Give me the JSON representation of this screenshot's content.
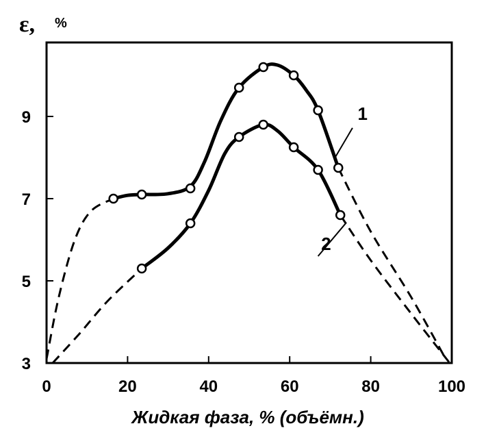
{
  "chart_data": {
    "type": "line",
    "ylabel_symbol": "ε,",
    "ylabel_unit": "%",
    "xlabel": "Жидкая фаза, % (объёмн.)",
    "xlim": [
      0,
      100
    ],
    "ylim": [
      3,
      10.8
    ],
    "x_ticks": [
      0,
      20,
      40,
      60,
      80,
      100
    ],
    "y_ticks": [
      3,
      5,
      7,
      9
    ],
    "x_tick_labels": [
      "0",
      "20",
      "40",
      "60",
      "80",
      "100"
    ],
    "y_tick_labels": [
      "3",
      "5",
      "7",
      "9"
    ],
    "series": [
      {
        "name": "1",
        "points": [
          {
            "x": 16.5,
            "y": 7.0
          },
          {
            "x": 23.5,
            "y": 7.1
          },
          {
            "x": 35.5,
            "y": 7.25
          },
          {
            "x": 47.5,
            "y": 9.7
          },
          {
            "x": 53.5,
            "y": 10.2
          },
          {
            "x": 61.0,
            "y": 10.0
          },
          {
            "x": 67.0,
            "y": 9.15
          },
          {
            "x": 72.0,
            "y": 7.75
          }
        ],
        "solid_curve": [
          [
            16.5,
            7.0
          ],
          [
            20,
            7.08
          ],
          [
            23.5,
            7.1
          ],
          [
            30,
            7.12
          ],
          [
            35.5,
            7.3
          ],
          [
            39,
            7.9
          ],
          [
            43,
            8.9
          ],
          [
            47.5,
            9.7
          ],
          [
            53.5,
            10.2
          ],
          [
            57,
            10.25
          ],
          [
            61,
            10.0
          ],
          [
            64,
            9.65
          ],
          [
            67,
            9.15
          ],
          [
            72,
            7.75
          ]
        ],
        "dashed_curve": [
          [
            0,
            3.1
          ],
          [
            3,
            4.6
          ],
          [
            7,
            6.0
          ],
          [
            11,
            6.7
          ],
          [
            16.5,
            7.0
          ]
        ],
        "dashed_tail": [
          [
            72,
            7.75
          ],
          [
            80,
            6.2
          ],
          [
            90,
            4.6
          ],
          [
            98.5,
            3.1
          ]
        ]
      },
      {
        "name": "2",
        "points": [
          {
            "x": 23.5,
            "y": 5.3
          },
          {
            "x": 35.5,
            "y": 6.4
          },
          {
            "x": 47.5,
            "y": 8.5
          },
          {
            "x": 53.5,
            "y": 8.8
          },
          {
            "x": 61.0,
            "y": 8.25
          },
          {
            "x": 67.0,
            "y": 7.7
          },
          {
            "x": 72.5,
            "y": 6.6
          }
        ],
        "solid_curve": [
          [
            23.5,
            5.3
          ],
          [
            30,
            5.8
          ],
          [
            35.5,
            6.4
          ],
          [
            40,
            7.2
          ],
          [
            44,
            8.1
          ],
          [
            47.5,
            8.5
          ],
          [
            53.5,
            8.8
          ],
          [
            57,
            8.65
          ],
          [
            61,
            8.25
          ],
          [
            67,
            7.7
          ],
          [
            72.5,
            6.6
          ]
        ],
        "dashed_curve": [
          [
            1.5,
            3.0
          ],
          [
            8,
            3.7
          ],
          [
            15,
            4.5
          ],
          [
            23.5,
            5.3
          ]
        ],
        "dashed_tail": [
          [
            72.5,
            6.6
          ],
          [
            80,
            5.5
          ],
          [
            90,
            4.2
          ],
          [
            99.5,
            3.0
          ]
        ]
      }
    ],
    "curve_labels": [
      {
        "text": "1",
        "x": 78,
        "y": 8.92
      },
      {
        "text": "2",
        "x": 69,
        "y": 5.75
      }
    ]
  }
}
